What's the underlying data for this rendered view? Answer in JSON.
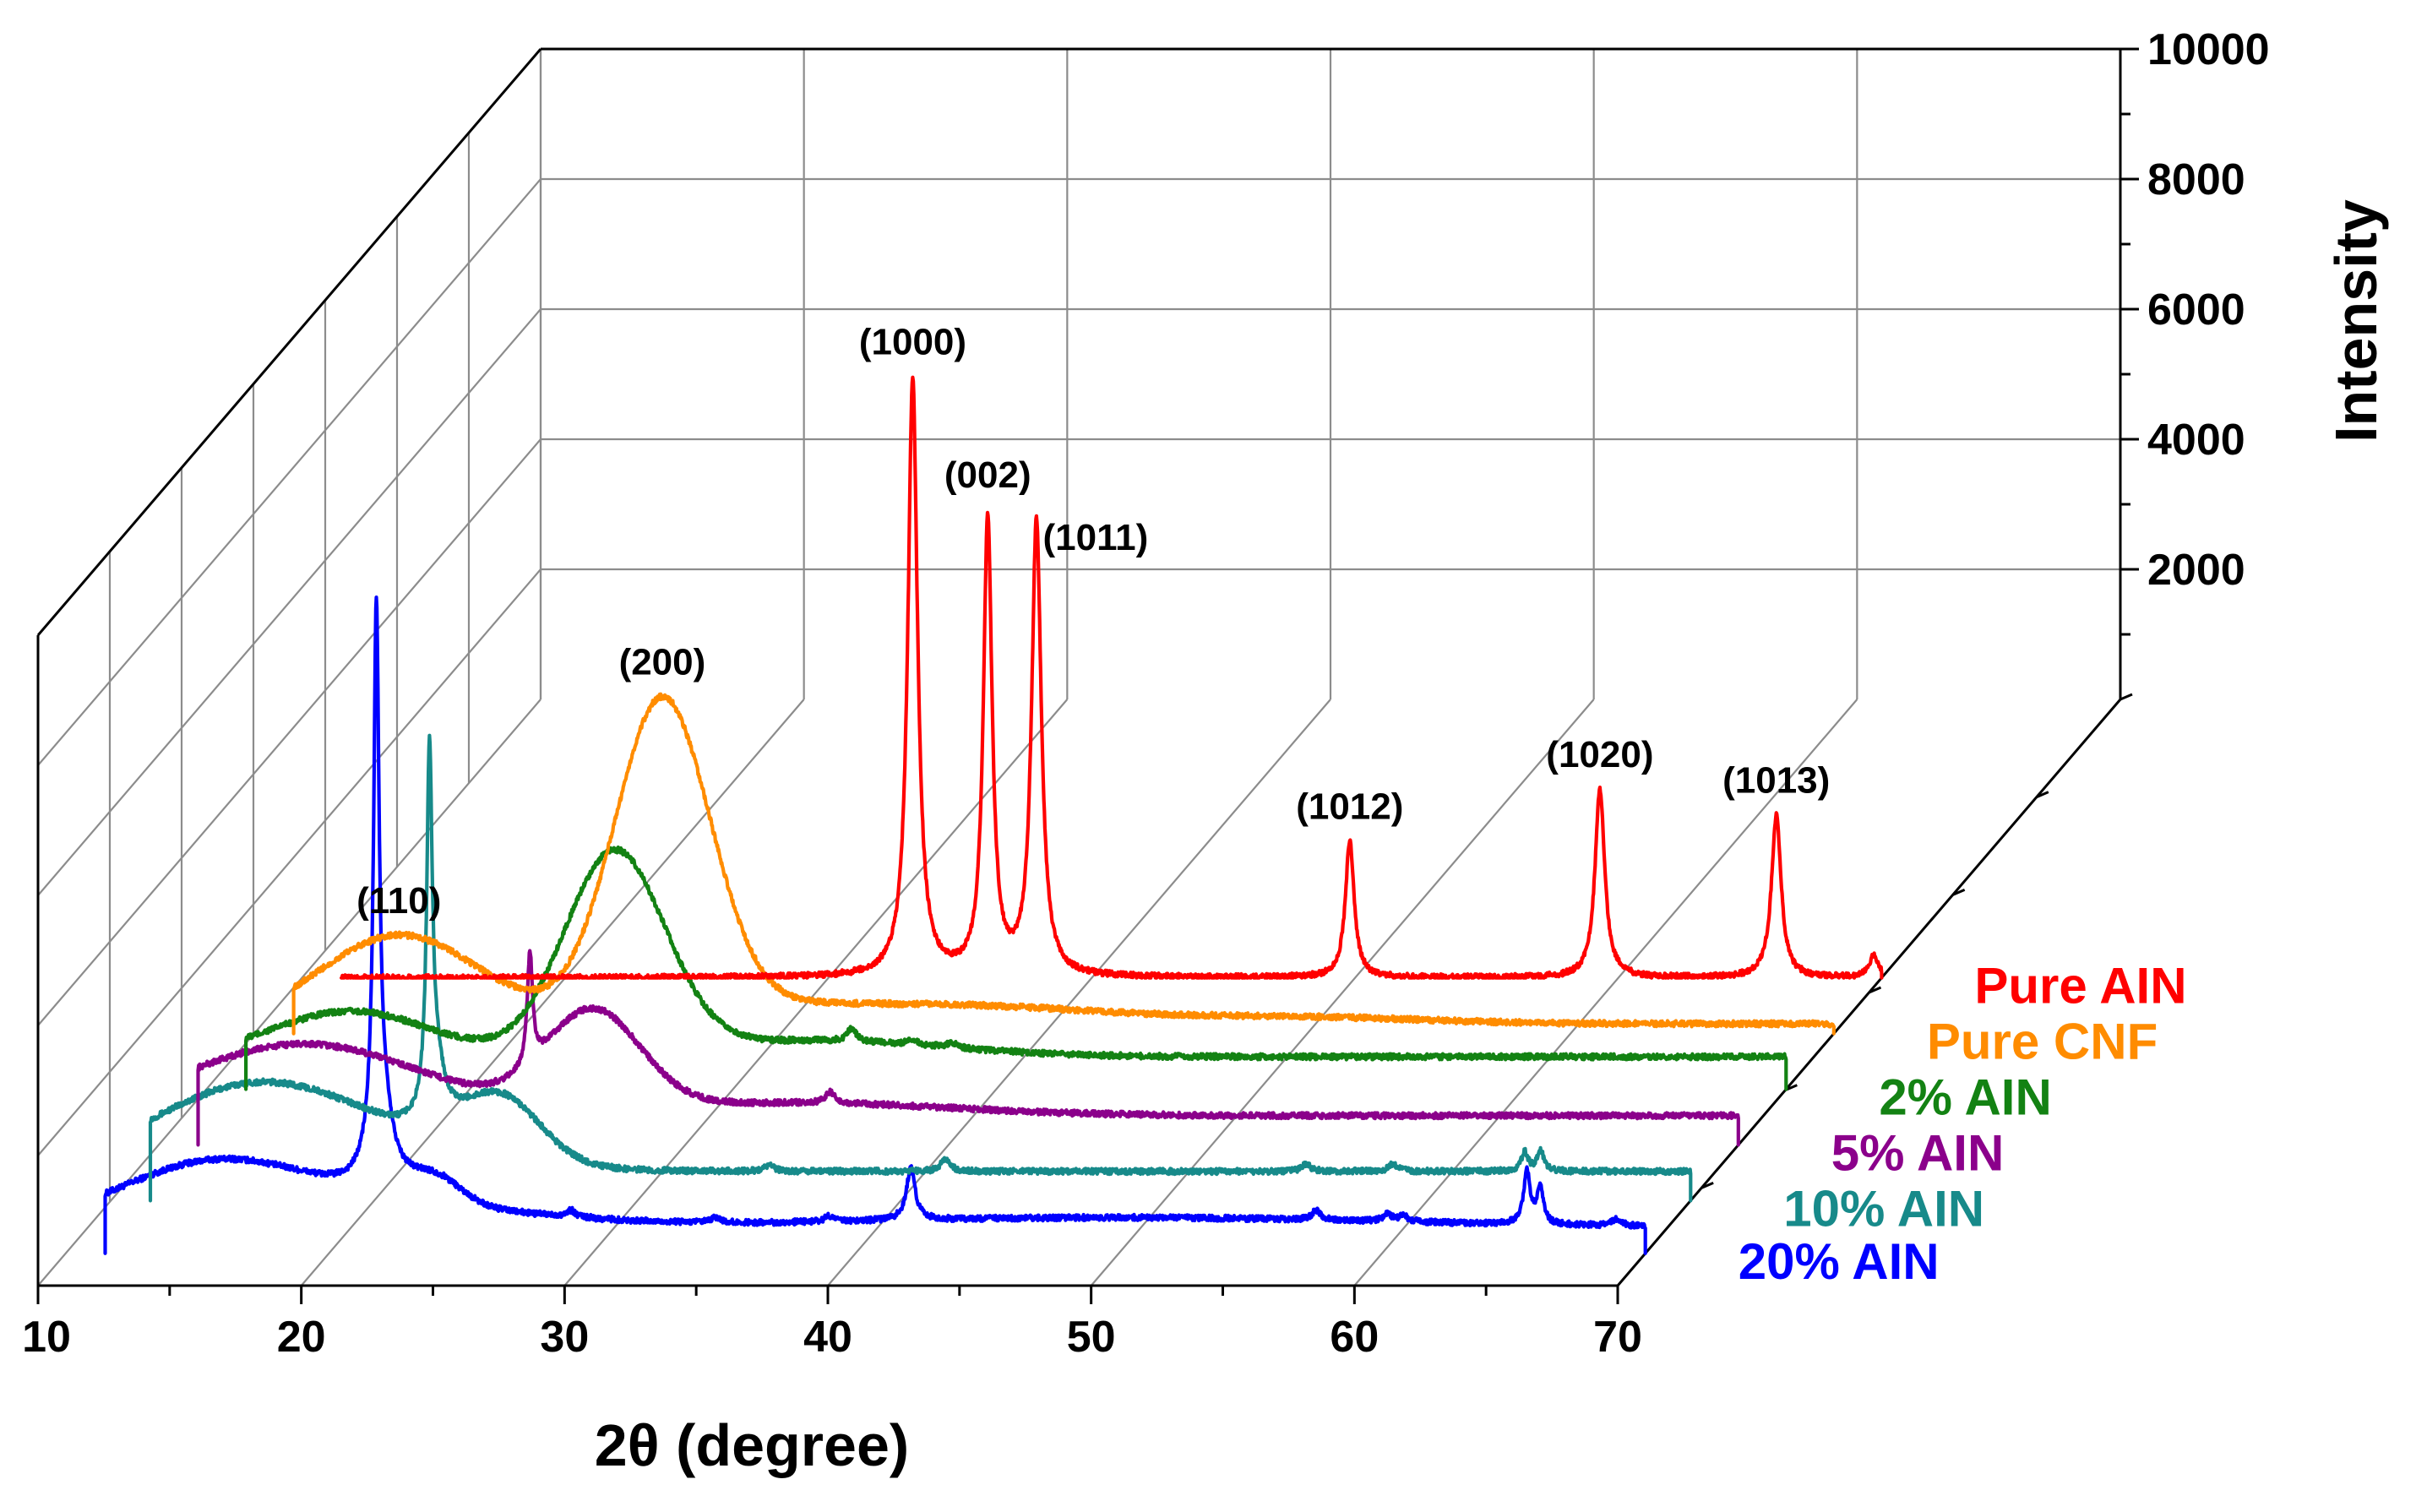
{
  "chart_data": {
    "type": "line",
    "style": "3d-waterfall",
    "xlabel": "2θ (degree)",
    "ylabel": "Intensity",
    "xlim": [
      10,
      70
    ],
    "ylim": [
      0,
      10000
    ],
    "x_ticks": [
      "10",
      "20",
      "30",
      "40",
      "50",
      "60",
      "70"
    ],
    "y_ticks": [
      "2000",
      "4000",
      "6000",
      "8000",
      "10000"
    ],
    "series": [
      {
        "name": "20% AlN",
        "color": "#0000ff",
        "start_x": 11.5,
        "end_x": 70,
        "base": 400,
        "humps": [
          [
            15.5,
            800,
            3.5
          ],
          [
            21.0,
            350,
            6.0
          ],
          [
            24.0,
            400,
            1.0
          ],
          [
            50.0,
            150,
            10.0
          ]
        ],
        "peaks": [
          [
            21.8,
            7800,
            0.12
          ],
          [
            21.95,
            1500,
            0.5
          ],
          [
            42.1,
            800,
            0.2
          ],
          [
            29.2,
            100,
            0.2
          ],
          [
            34.7,
            80,
            0.2
          ],
          [
            39.0,
            90,
            0.2
          ],
          [
            57.5,
            150,
            0.2
          ],
          [
            60.2,
            110,
            0.2
          ],
          [
            60.8,
            100,
            0.2
          ],
          [
            65.5,
            800,
            0.15
          ],
          [
            66.0,
            550,
            0.15
          ],
          [
            68.9,
            100,
            0.2
          ]
        ]
      },
      {
        "name": "10% AlN",
        "color": "#178a8a",
        "start_x": 11.5,
        "end_x": 70,
        "base": 450,
        "humps": [
          [
            15.5,
            1300,
            4.0
          ],
          [
            21.5,
            200,
            4.0
          ],
          [
            24.8,
            950,
            1.5
          ]
        ],
        "peaks": [
          [
            22.1,
            5200,
            0.12
          ],
          [
            22.3,
            1000,
            0.4
          ],
          [
            35.0,
            100,
            0.2
          ],
          [
            41.7,
            200,
            0.2
          ],
          [
            55.4,
            110,
            0.2
          ],
          [
            58.7,
            120,
            0.2
          ],
          [
            63.7,
            300,
            0.15
          ],
          [
            64.3,
            320,
            0.15
          ]
        ]
      },
      {
        "name": "5% AlN",
        "color": "#8b008b",
        "start_x": 11.5,
        "end_x": 70,
        "base": 450,
        "humps": [
          [
            15.5,
            1100,
            4.5
          ],
          [
            26.5,
            1500,
            1.8
          ],
          [
            34.0,
            200,
            6.0
          ]
        ],
        "peaks": [
          [
            24.1,
            1700,
            0.12
          ],
          [
            35.5,
            180,
            0.2
          ]
        ]
      },
      {
        "name": "2% AlN",
        "color": "#138213",
        "start_x": 11.5,
        "end_x": 70,
        "base": 500,
        "humps": [
          [
            15.5,
            700,
            3.0
          ],
          [
            25.5,
            3100,
            1.9
          ],
          [
            33.0,
            250,
            5.0
          ]
        ],
        "peaks": [
          [
            34.5,
            200,
            0.2
          ],
          [
            36.8,
            90,
            0.2
          ],
          [
            38.3,
            80,
            0.2
          ]
        ]
      },
      {
        "name": "Pure CNF",
        "color": "#ff8c00",
        "start_x": 11.5,
        "end_x": 70,
        "base": 150,
        "humps": [
          [
            15.5,
            1350,
            3.0
          ],
          [
            25.5,
            4800,
            1.8
          ],
          [
            30.0,
            300,
            6.0
          ],
          [
            39.0,
            150,
            4.0
          ],
          [
            49.0,
            110,
            5.0
          ]
        ],
        "peaks": []
      },
      {
        "name": "Pure AlN",
        "color": "#ff0000",
        "start_x": 11.5,
        "end_x": 70,
        "base": 0,
        "humps": [],
        "peaks": [
          [
            33.2,
            9200,
            0.22
          ],
          [
            36.05,
            7000,
            0.2
          ],
          [
            37.9,
            7000,
            0.22
          ],
          [
            49.8,
            2100,
            0.2
          ],
          [
            59.3,
            2900,
            0.22
          ],
          [
            66.0,
            2500,
            0.22
          ],
          [
            69.7,
            350,
            0.2
          ]
        ]
      }
    ],
    "peak_annotations": [
      {
        "label": "(1000)",
        "series": "Pure AlN",
        "x": 33.2
      },
      {
        "label": "(002)",
        "series": "Pure AlN",
        "x": 36.05
      },
      {
        "label": "(1011)",
        "series": "Pure AlN",
        "x": 37.9
      },
      {
        "label": "(1012)",
        "series": "Pure AlN",
        "x": 49.8
      },
      {
        "label": "(1020)",
        "series": "Pure AlN",
        "x": 59.3
      },
      {
        "label": "(1013)",
        "series": "Pure AlN",
        "x": 66.0
      },
      {
        "label": "(200)",
        "series": "Pure CNF",
        "x": 25.5
      },
      {
        "label": "(110)",
        "series": "Pure CNF",
        "x": 15.5
      }
    ],
    "series_labels": [
      "Pure AIN",
      "Pure CNF",
      "2% AIN",
      "5% AIN",
      "10% AIN",
      "20% AIN"
    ]
  }
}
